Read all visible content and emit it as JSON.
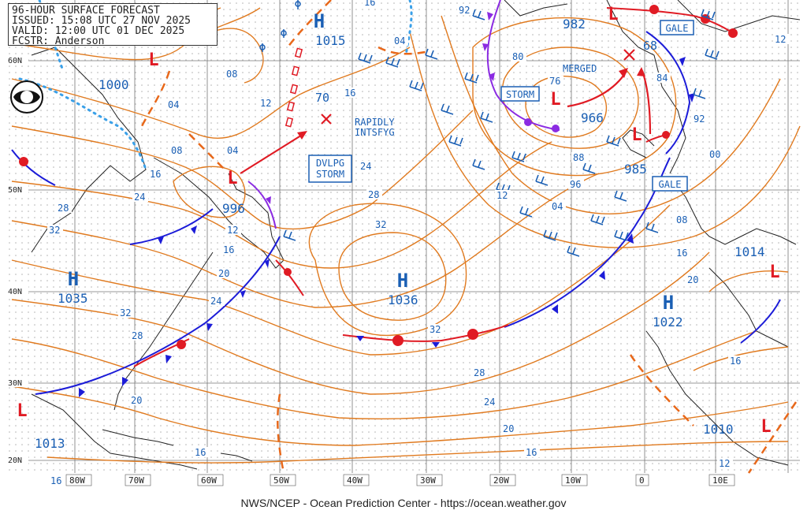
{
  "header": {
    "title": "96-HOUR SURFACE FORECAST",
    "issued": "ISSUED: 15:08 UTC 27 NOV 2025",
    "valid": "VALID:  12:00 UTC 01 DEC 2025",
    "forecaster": "FCSTR:  Anderson"
  },
  "footer": "NWS/NCEP - Ocean Prediction Center - https://ocean.weather.gov",
  "logo": "NOAA",
  "lat_labels": [
    "60N",
    "50N",
    "40N",
    "30N",
    "20N"
  ],
  "lon_labels": [
    "80W",
    "70W",
    "60W",
    "50W",
    "40W",
    "30W",
    "20W",
    "10W",
    "0",
    "10E"
  ],
  "highs": [
    {
      "letter": "H",
      "pressure": "1015"
    },
    {
      "letter": "H",
      "pressure": "1035"
    },
    {
      "letter": "H",
      "pressure": "1036"
    },
    {
      "letter": "H",
      "pressure": "1022"
    }
  ],
  "lows": [
    {
      "letter": "L",
      "pressure": "1000"
    },
    {
      "letter": "L",
      "pressure": "996"
    },
    {
      "letter": "L",
      "pressure": "966"
    },
    {
      "letter": "L",
      "pressure": "985"
    },
    {
      "letter": "L",
      "pressure": "982"
    },
    {
      "letter": "L",
      "pressure": "1013"
    },
    {
      "letter": "L",
      "pressure": "1014"
    },
    {
      "letter": "L",
      "pressure": "1010"
    }
  ],
  "boxes": {
    "storm": "STORM",
    "dvlpg_storm_1": "DVLPG",
    "dvlpg_storm_2": "STORM",
    "gale_north": "GALE",
    "gale_east": "GALE"
  },
  "annotations": {
    "rapidly_1": "RAPIDLY",
    "rapidly_2": "INTSFYG",
    "merged": "MERGED",
    "future_pressure_west": "70",
    "future_pressure_east": "68"
  },
  "isobar_labels": [
    "04",
    "08",
    "12",
    "16",
    "20",
    "24",
    "28",
    "32",
    "00",
    "80",
    "76",
    "84",
    "88",
    "92",
    "96"
  ],
  "colors": {
    "isobar": "#e07a1f",
    "high_low_blue": "#1a5fb4",
    "low_red": "#e01b24",
    "cold_front": "#1c1cd8",
    "warm_front": "#e01b24",
    "occluded": "#8b2be2",
    "ice_edge": "#3aa0e8",
    "coast": "#222222"
  }
}
